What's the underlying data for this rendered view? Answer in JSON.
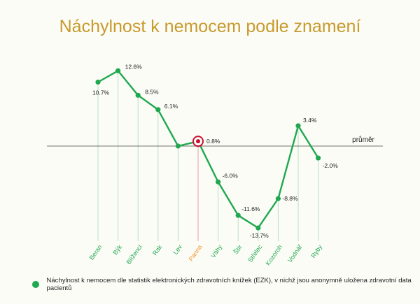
{
  "chart_data": {
    "type": "line",
    "title": "Náchylnost k nemocem podle znamení",
    "categories": [
      "Beran",
      "Býk",
      "Blíženci",
      "Rak",
      "Lev",
      "Panna",
      "Váhy",
      "Štír",
      "Střelec",
      "Kozoroh",
      "Vodnář",
      "Ryby"
    ],
    "value_labels": [
      "10.7%",
      "12.6%",
      "8.5%",
      "6.1%",
      "",
      "0.8%",
      "-6.0%",
      "-11.6%",
      "-13.7%",
      "-8.8%",
      "3.4%",
      "-2.0%"
    ],
    "series": [
      {
        "name": "Náchylnost k nemocem dle statistik elektronických zdravotních knížek (EZK), v nichž jsou anonymně uložena zdravotní data pacientů",
        "values": [
          10.7,
          12.6,
          8.5,
          6.1,
          0,
          0.8,
          -6.0,
          -11.6,
          -13.7,
          -8.8,
          3.4,
          -2.0
        ]
      }
    ],
    "highlight_category": "Panna",
    "reference_line": {
      "label": "průměr",
      "value": 0
    },
    "ylim": [
      -17,
      14
    ],
    "grid": false,
    "legend_position": "bottom-left",
    "colors": {
      "series": "#1fa84f",
      "highlight": "#c8102e",
      "highlight_label": "#f0932b",
      "title": "#c79a2c",
      "category_label": "#1fa84f",
      "drop_line_green": "#b9dfc1",
      "drop_line_red": "#e8a0a8",
      "reference_line": "#444444"
    }
  }
}
